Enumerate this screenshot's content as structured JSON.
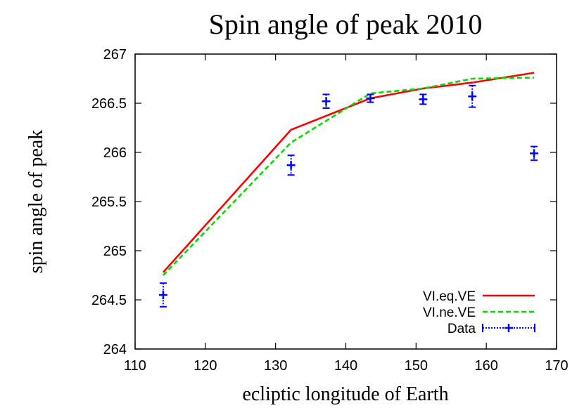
{
  "chart_data": {
    "type": "line",
    "title": "Spin angle of peak 2010",
    "xlabel": "ecliptic longitude of Earth",
    "ylabel": "spin angle of peak",
    "xlim": [
      110,
      170
    ],
    "ylim": [
      264,
      267
    ],
    "x_ticks": [
      "110",
      "120",
      "130",
      "140",
      "150",
      "160",
      "170"
    ],
    "y_ticks": [
      "264",
      "264.5",
      "265",
      "265.5",
      "266",
      "266.5",
      "267"
    ],
    "grid": false,
    "legend_position": "bottom-right",
    "series": [
      {
        "name": "VI.eq.VE",
        "color": "#ff0000",
        "style": "solid",
        "x": [
          114,
          132.2,
          143.5,
          151,
          158,
          166.8
        ],
        "y": [
          264.78,
          266.23,
          266.55,
          266.65,
          266.71,
          266.81
        ]
      },
      {
        "name": "VI.ne.VE",
        "color": "#00dd00",
        "style": "dashed",
        "x": [
          114,
          132.2,
          143.5,
          151,
          158,
          166.8
        ],
        "y": [
          264.75,
          266.1,
          266.6,
          266.65,
          266.75,
          266.76
        ]
      },
      {
        "name": "Data",
        "color": "#0000ff",
        "style": "errorbar",
        "x": [
          114,
          132.2,
          137.2,
          143.5,
          151,
          158,
          166.8
        ],
        "y": [
          264.55,
          265.87,
          266.52,
          266.55,
          266.54,
          266.57,
          265.99
        ],
        "yerr": [
          0.12,
          0.1,
          0.07,
          0.04,
          0.05,
          0.11,
          0.07
        ]
      }
    ]
  }
}
